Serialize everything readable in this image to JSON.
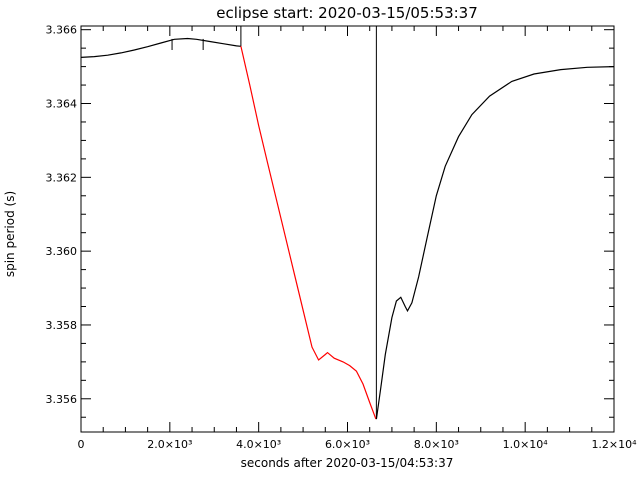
{
  "chart_data": {
    "type": "line",
    "title": "eclipse start: 2020-03-15/05:53:37",
    "xlabel": "seconds after 2020-03-15/04:53:37",
    "ylabel": "spin period (s)",
    "xlim": [
      0,
      12000
    ],
    "ylim": [
      3.3551,
      3.3661
    ],
    "x_ticks": [
      {
        "value": 0,
        "label": "0"
      },
      {
        "value": 2000,
        "label": "2.0×10³"
      },
      {
        "value": 4000,
        "label": "4.0×10³"
      },
      {
        "value": 6000,
        "label": "6.0×10³"
      },
      {
        "value": 8000,
        "label": "8.0×10³"
      },
      {
        "value": 10000,
        "label": "1.0×10⁴"
      },
      {
        "value": 12000,
        "label": "1.2×10⁴"
      }
    ],
    "y_ticks": [
      {
        "value": 3.356,
        "label": "3.356"
      },
      {
        "value": 3.358,
        "label": "3.358"
      },
      {
        "value": 3.36,
        "label": "3.360"
      },
      {
        "value": 3.362,
        "label": "3.362"
      },
      {
        "value": 3.364,
        "label": "3.364"
      },
      {
        "value": 3.366,
        "label": "3.366"
      }
    ],
    "grid": false,
    "legend": "none",
    "eclipse_box": {
      "x_start": 3600,
      "x_end": 6650,
      "y_top": 3.3661
    },
    "series": [
      {
        "color": "#000000",
        "points": [
          [
            0,
            3.36525
          ],
          [
            300,
            3.36527
          ],
          [
            600,
            3.36531
          ],
          [
            900,
            3.36537
          ],
          [
            1200,
            3.36545
          ],
          [
            1500,
            3.36554
          ],
          [
            1800,
            3.36564
          ],
          [
            2100,
            3.36574
          ],
          [
            2400,
            3.36576
          ],
          [
            2600,
            3.36574
          ],
          [
            2900,
            3.36568
          ],
          [
            3200,
            3.36562
          ],
          [
            3500,
            3.36556
          ],
          [
            3600,
            3.36555
          ]
        ]
      },
      {
        "color": "#ff0000",
        "points": [
          [
            3600,
            3.36555
          ],
          [
            3800,
            3.3645
          ],
          [
            4000,
            3.3634
          ],
          [
            4200,
            3.3624
          ],
          [
            4400,
            3.3614
          ],
          [
            4600,
            3.3604
          ],
          [
            4800,
            3.3594
          ],
          [
            5000,
            3.3584
          ],
          [
            5200,
            3.3574
          ],
          [
            5350,
            3.35705
          ],
          [
            5500,
            3.3572
          ],
          [
            5550,
            3.35725
          ],
          [
            5700,
            3.3571
          ],
          [
            5900,
            3.357
          ],
          [
            6050,
            3.3569
          ],
          [
            6200,
            3.35675
          ],
          [
            6350,
            3.3564
          ],
          [
            6500,
            3.3559
          ],
          [
            6640,
            3.35545
          ]
        ]
      },
      {
        "color": "#000000",
        "points": [
          [
            6650,
            3.35545
          ],
          [
            6750,
            3.3563
          ],
          [
            6850,
            3.3572
          ],
          [
            7000,
            3.3582
          ],
          [
            7100,
            3.35865
          ],
          [
            7200,
            3.35875
          ],
          [
            7300,
            3.3585
          ],
          [
            7350,
            3.35838
          ],
          [
            7450,
            3.3586
          ],
          [
            7600,
            3.3593
          ],
          [
            7800,
            3.3604
          ],
          [
            8000,
            3.3615
          ],
          [
            8200,
            3.3623
          ],
          [
            8500,
            3.3631
          ],
          [
            8800,
            3.3637
          ],
          [
            9200,
            3.3642
          ],
          [
            9700,
            3.3646
          ],
          [
            10200,
            3.3648
          ],
          [
            10800,
            3.36492
          ],
          [
            11400,
            3.36498
          ],
          [
            12000,
            3.365
          ]
        ]
      }
    ]
  }
}
